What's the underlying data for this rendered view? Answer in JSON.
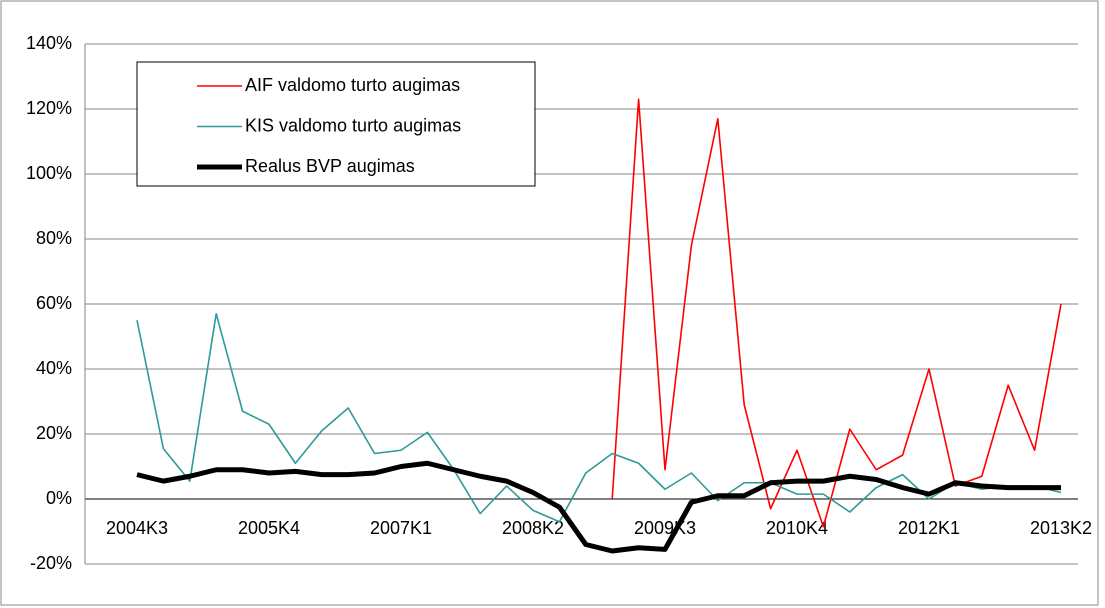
{
  "chart_data": {
    "type": "line",
    "categories": [
      "2004K3",
      null,
      null,
      null,
      null,
      "2005K4",
      null,
      null,
      null,
      null,
      "2007K1",
      null,
      null,
      null,
      null,
      "2008K2",
      null,
      null,
      null,
      null,
      "2009K3",
      null,
      null,
      null,
      null,
      "2010K4",
      null,
      null,
      null,
      null,
      "2012K1",
      null,
      null,
      null,
      null,
      "2013K2"
    ],
    "series": [
      {
        "name": "AIF valdomo turto augimas",
        "color": "#ff0000",
        "width": 1.6,
        "values": [
          null,
          null,
          null,
          null,
          null,
          null,
          null,
          null,
          null,
          null,
          null,
          null,
          null,
          null,
          null,
          null,
          null,
          null,
          0,
          123,
          9,
          78,
          117,
          29,
          -3,
          15,
          -8.5,
          21.5,
          9,
          13.5,
          40,
          4,
          7,
          35,
          15,
          60
        ]
      },
      {
        "name": "KIS valdomo turto augimas",
        "color": "#2e9a99",
        "width": 1.6,
        "values": [
          55,
          15.5,
          5.5,
          57,
          27,
          23,
          11,
          21,
          28,
          14,
          15,
          20.5,
          9,
          -4.5,
          4,
          -3.5,
          -7,
          8,
          14,
          11,
          3,
          8,
          -0.5,
          5,
          5,
          1.5,
          1.5,
          -4,
          3.5,
          7.5,
          0,
          5,
          3,
          4,
          4,
          2
        ]
      },
      {
        "name": "Realus BVP augimas",
        "color": "#000000",
        "width": 5,
        "values": [
          7.5,
          5.5,
          7,
          9,
          9,
          8,
          8.5,
          7.5,
          7.5,
          8,
          10,
          11,
          9,
          7,
          5.5,
          2,
          -2.5,
          -14,
          -16,
          -15,
          -15.5,
          -1,
          1,
          1,
          5,
          5.5,
          5.5,
          7,
          6,
          3.5,
          1.5,
          5,
          4,
          3.5,
          3.5,
          3.5
        ]
      }
    ],
    "ylim": [
      -20,
      140
    ],
    "yticks": [
      {
        "value": -20,
        "label": "-20%"
      },
      {
        "value": 0,
        "label": "0%"
      },
      {
        "value": 20,
        "label": "20%"
      },
      {
        "value": 40,
        "label": "40%"
      },
      {
        "value": 60,
        "label": "60%"
      },
      {
        "value": 80,
        "label": "80%"
      },
      {
        "value": 100,
        "label": "100%"
      },
      {
        "value": 120,
        "label": "120%"
      },
      {
        "value": 140,
        "label": "140%"
      }
    ],
    "grid": true,
    "legend": "upper-left"
  }
}
